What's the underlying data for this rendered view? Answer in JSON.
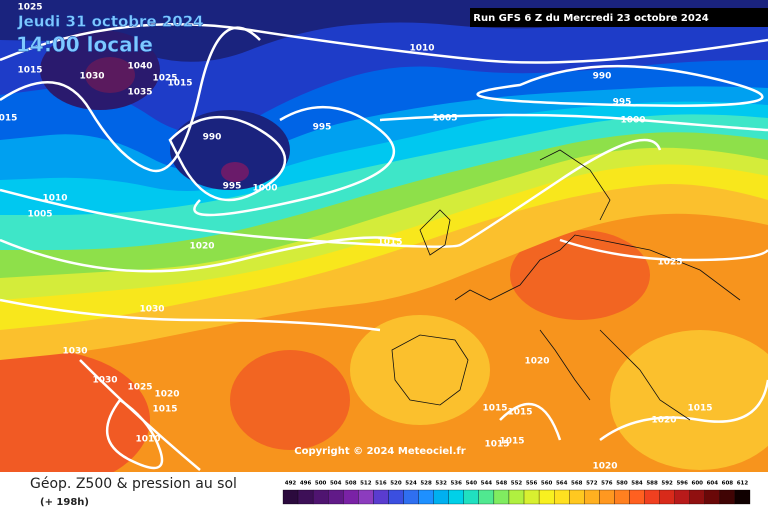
{
  "header": {
    "date": "Jeudi 31 octobre 2024",
    "time": "14:00 locale",
    "run": "Run GFS 6 Z du Mercredi 23 octobre 2024"
  },
  "copyright": "Copyright © 2024 Meteociel.fr",
  "footer": {
    "title": "Géop. Z500 & pression au sol",
    "lead": "(+ 198h)"
  },
  "isobar_labels": [
    "1025",
    "015",
    "1015",
    "1030",
    "1040",
    "1035",
    "1025",
    "1015",
    "990",
    "995",
    "995",
    "1000",
    "1010",
    "990",
    "995",
    "1000",
    "1005",
    "1010",
    "1005",
    "1020",
    "1015",
    "1025",
    "1030",
    "1030",
    "1030",
    "1025",
    "1020",
    "1015",
    "1010",
    "1020",
    "1015",
    "1015",
    "1015",
    "1015",
    "1020",
    "1020",
    "1015"
  ],
  "legend": {
    "labels": [
      492,
      496,
      500,
      504,
      508,
      512,
      516,
      520,
      524,
      528,
      532,
      536,
      540,
      544,
      548,
      552,
      556,
      560,
      564,
      568,
      572,
      576,
      580,
      584,
      588,
      592,
      596,
      600,
      604,
      608,
      612
    ]
  }
}
